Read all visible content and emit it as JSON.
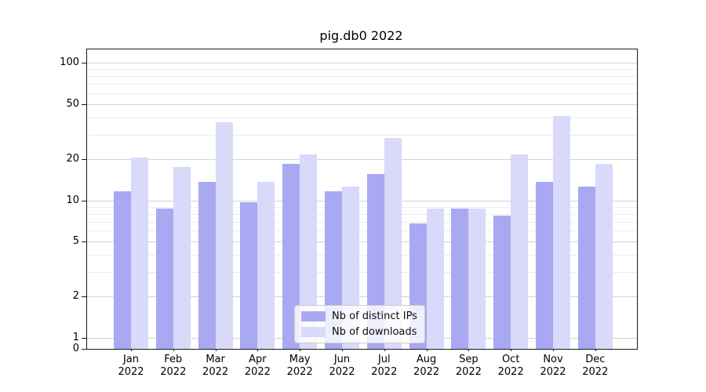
{
  "chart_data": {
    "type": "bar",
    "title": "pig.db0 2022",
    "categories": [
      "Jan 2022",
      "Feb 2022",
      "Mar 2022",
      "Apr 2022",
      "May 2022",
      "Jun 2022",
      "Jul 2022",
      "Aug 2022",
      "Sep 2022",
      "Oct 2022",
      "Nov 2022",
      "Dec 2022"
    ],
    "series": [
      {
        "name": "Nb of distinct IPs",
        "color": "#a8a8f3",
        "values": [
          12,
          9,
          14,
          10,
          19,
          12,
          16,
          7,
          9,
          8,
          14,
          13
        ]
      },
      {
        "name": "Nb of downloads",
        "color": "#d9d9f9",
        "values": [
          21,
          18,
          38,
          14,
          22,
          13,
          29,
          9,
          9,
          22,
          42,
          19
        ]
      }
    ],
    "yscale": "symlog",
    "ylim": [
      0,
      126
    ],
    "yticks": [
      0,
      1,
      2,
      5,
      10,
      20,
      50,
      100
    ],
    "minor_gridlines": [
      3,
      4,
      6,
      7,
      8,
      9,
      30,
      40,
      60,
      70,
      80,
      90
    ],
    "grid": true,
    "legend_position": "lower center",
    "xlabel": "",
    "ylabel": ""
  }
}
